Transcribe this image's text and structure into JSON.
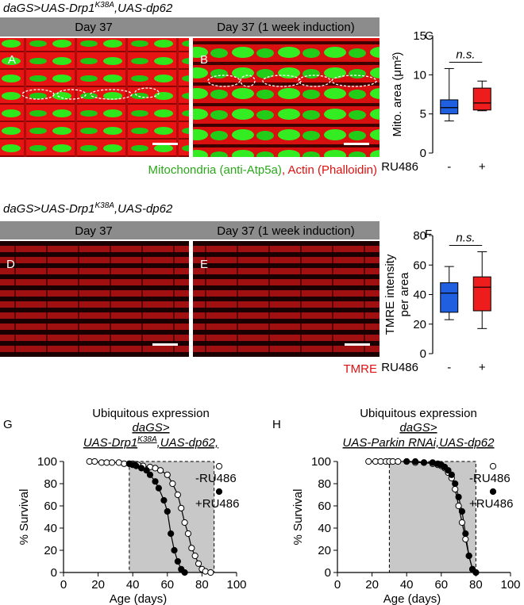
{
  "figure": {
    "header_top": [
      "daGS>UAS-Drp1",
      "K38A",
      ",UAS-dp62"
    ],
    "header_mid": [
      "daGS>UAS-Drp1",
      "K38A",
      ",UAS-dp62"
    ],
    "day_labels": [
      "Day 37",
      "Day 37 (1 week induction)",
      "Day 37",
      "Day 37 (1 week induction)"
    ],
    "panels": [
      "A",
      "B",
      "C",
      "D",
      "E",
      "F",
      "G",
      "H"
    ],
    "caption_green": "Mitochondria (anti-Atp5a)",
    "caption_red": ", Actin (Phalloidin)",
    "caption_tmre": "TMRE"
  },
  "chart_data": [
    {
      "type": "box",
      "ylabel": [
        "Mito. area (μm²)"
      ],
      "xlabel": "RU486",
      "categories": [
        "-",
        "+"
      ],
      "annotation": "n.s.",
      "ylim": [
        0,
        15
      ],
      "yticks": [
        0,
        5,
        10,
        15
      ],
      "boxes": [
        {
          "color": "#1f5fe0",
          "min": 4.1,
          "q1": 5.0,
          "median": 5.8,
          "q3": 6.8,
          "max": 10.8
        },
        {
          "color": "#ee1c1c",
          "min": 5.4,
          "q1": 5.5,
          "median": 6.4,
          "q3": 8.3,
          "max": 9.2
        }
      ]
    },
    {
      "type": "box",
      "ylabel": [
        "TMRE intensity",
        "per area"
      ],
      "xlabel": "RU486",
      "categories": [
        "-",
        "+"
      ],
      "annotation": "n.s.",
      "ylim": [
        0,
        80
      ],
      "yticks": [
        0,
        20,
        40,
        60,
        80
      ],
      "boxes": [
        {
          "color": "#1f5fe0",
          "min": 23,
          "q1": 28,
          "median": 41,
          "q3": 48,
          "max": 59
        },
        {
          "color": "#ee1c1c",
          "min": 17,
          "q1": 29,
          "median": 45,
          "q3": 52,
          "max": 69
        }
      ]
    },
    {
      "type": "line",
      "title": "Ubiquitous expression",
      "genotype": [
        "daGS>",
        "UAS-Drp1",
        "K38A",
        ",UAS-dp62,"
      ],
      "xlabel": "Age (days)",
      "ylabel": "% Survival",
      "xlim": [
        0,
        100
      ],
      "ylim": [
        0,
        100
      ],
      "xticks": [
        0,
        20,
        40,
        60,
        80,
        100
      ],
      "yticks": [
        0,
        20,
        40,
        60,
        80,
        100
      ],
      "shaded_range": [
        38,
        87
      ],
      "series": [
        {
          "name": "-RU486",
          "marker": "open",
          "color": "#000000",
          "x": [
            15,
            18,
            22,
            25,
            28,
            32,
            35,
            38,
            40,
            43,
            46,
            50,
            53,
            56,
            60,
            63,
            66,
            68,
            70,
            72,
            74,
            76,
            78,
            80,
            82,
            85
          ],
          "values": [
            100,
            100,
            99,
            99,
            99,
            99,
            98,
            98,
            98,
            97,
            96,
            95,
            94,
            92,
            88,
            80,
            70,
            58,
            45,
            35,
            22,
            15,
            8,
            3,
            1,
            0
          ]
        },
        {
          "name": "+RU486",
          "marker": "filled",
          "color": "#000000",
          "x": [
            38,
            40,
            42,
            45,
            48,
            50,
            53,
            55,
            58,
            60,
            62,
            64,
            66,
            68,
            70
          ],
          "values": [
            98,
            97,
            96,
            94,
            92,
            88,
            82,
            76,
            65,
            55,
            35,
            20,
            10,
            3,
            0
          ]
        }
      ]
    },
    {
      "type": "line",
      "title": "Ubiquitous expression",
      "genotype": [
        "daGS>",
        "UAS-Parkin RNAi,UAS-dp62"
      ],
      "xlabel": "Age (days)",
      "ylabel": "% Survival",
      "xlim": [
        0,
        100
      ],
      "ylim": [
        0,
        100
      ],
      "xticks": [
        0,
        20,
        40,
        60,
        80,
        100
      ],
      "yticks": [
        0,
        20,
        40,
        60,
        80,
        100
      ],
      "shaded_range": [
        30,
        80
      ],
      "series": [
        {
          "name": "-RU486",
          "marker": "open",
          "color": "#000000",
          "x": [
            18,
            22,
            25,
            28,
            30,
            32,
            35,
            40,
            45,
            50,
            55,
            58,
            60,
            62,
            64,
            66,
            68,
            70,
            72,
            74,
            76,
            78,
            80
          ],
          "values": [
            100,
            100,
            100,
            100,
            100,
            100,
            100,
            100,
            99,
            99,
            98,
            97,
            96,
            94,
            90,
            85,
            75,
            60,
            45,
            30,
            15,
            3,
            0
          ]
        },
        {
          "name": "+RU486",
          "marker": "filled",
          "color": "#000000",
          "x": [
            40,
            45,
            50,
            55,
            58,
            60,
            62,
            64,
            66,
            68,
            70,
            72,
            74,
            76,
            78,
            80
          ],
          "values": [
            100,
            100,
            99,
            99,
            98,
            97,
            95,
            92,
            88,
            80,
            68,
            55,
            35,
            15,
            3,
            0
          ]
        }
      ]
    }
  ]
}
